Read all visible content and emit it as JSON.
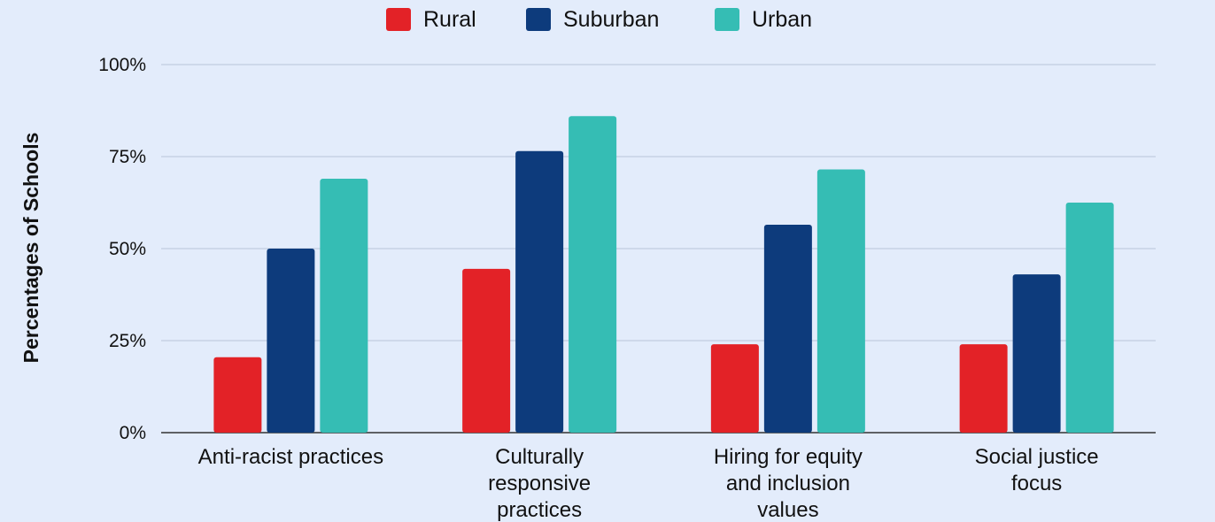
{
  "chart_data": {
    "type": "bar",
    "title": "",
    "xlabel": "",
    "ylabel": "Percentages of Schools",
    "ylim": [
      0,
      100
    ],
    "yticks": [
      0,
      25,
      50,
      75,
      100
    ],
    "ytick_labels": [
      "0%",
      "25%",
      "50%",
      "75%",
      "100%"
    ],
    "grid": true,
    "legend_position": "top-center",
    "categories": [
      [
        "Anti-racist practices"
      ],
      [
        "Culturally",
        "responsive",
        "practices"
      ],
      [
        "Hiring for equity",
        "and inclusion",
        "values"
      ],
      [
        "Social justice",
        "focus"
      ]
    ],
    "series": [
      {
        "name": "Rural",
        "color": "#e32227",
        "values": [
          20.5,
          44.5,
          24,
          24
        ]
      },
      {
        "name": "Suburban",
        "color": "#0d3b7c",
        "values": [
          50,
          76.5,
          56.5,
          43
        ]
      },
      {
        "name": "Urban",
        "color": "#35bdb4",
        "values": [
          69,
          86,
          71.5,
          62.5
        ]
      }
    ]
  }
}
